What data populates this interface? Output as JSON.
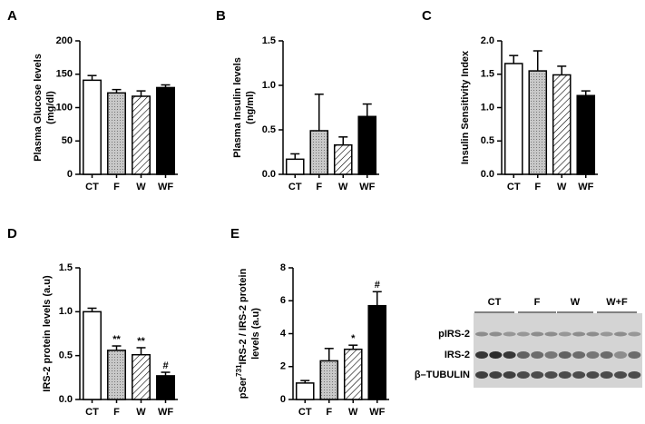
{
  "chart_data": [
    {
      "type": "bar",
      "panel": "A",
      "ylabel_lines": [
        [
          {
            "text": "Plasma Glucose levels"
          }
        ],
        [
          {
            "text": "(mg/dl)"
          }
        ]
      ],
      "categories": [
        "CT",
        "F",
        "W",
        "WF"
      ],
      "values": [
        141,
        122,
        117,
        130
      ],
      "errors": [
        7,
        5,
        8,
        4
      ],
      "annotations": [
        null,
        null,
        null,
        null
      ],
      "colors": [
        "#ffffff",
        "#c8c8c8",
        "#ffffff",
        "#000000"
      ],
      "patterns": [
        "none",
        "dots",
        "hatch",
        "none"
      ],
      "ylim": [
        0,
        200
      ],
      "yticks": [
        0,
        50,
        100,
        150,
        200
      ]
    },
    {
      "type": "bar",
      "panel": "B",
      "ylabel_lines": [
        [
          {
            "text": "Plasma Insulin levels"
          }
        ],
        [
          {
            "text": "(ng/ml)"
          }
        ]
      ],
      "categories": [
        "CT",
        "F",
        "W",
        "WF"
      ],
      "values": [
        0.17,
        0.49,
        0.33,
        0.65
      ],
      "errors": [
        0.06,
        0.41,
        0.09,
        0.14
      ],
      "annotations": [
        null,
        null,
        null,
        null
      ],
      "colors": [
        "#ffffff",
        "#c8c8c8",
        "#ffffff",
        "#000000"
      ],
      "patterns": [
        "none",
        "dots",
        "hatch",
        "none"
      ],
      "ylim": [
        0,
        1.5
      ],
      "yticks": [
        {
          "value": 0,
          "label": "0.0"
        },
        0.5,
        {
          "value": 1,
          "label": "1.0"
        },
        1.5
      ]
    },
    {
      "type": "bar",
      "panel": "C",
      "ylabel_lines": [
        [
          {
            "text": "Insulin Sensitivity Index"
          }
        ]
      ],
      "categories": [
        "CT",
        "F",
        "W",
        "WF"
      ],
      "values": [
        1.66,
        1.55,
        1.49,
        1.18
      ],
      "errors": [
        0.12,
        0.3,
        0.13,
        0.07
      ],
      "annotations": [
        null,
        null,
        null,
        null
      ],
      "colors": [
        "#ffffff",
        "#c8c8c8",
        "#ffffff",
        "#000000"
      ],
      "patterns": [
        "none",
        "dots",
        "hatch",
        "none"
      ],
      "ylim": [
        0,
        2
      ],
      "yticks": [
        {
          "value": 0,
          "label": "0.0"
        },
        0.5,
        {
          "value": 1,
          "label": "1.0"
        },
        1.5,
        {
          "value": 2,
          "label": "2.0"
        }
      ]
    },
    {
      "type": "bar",
      "panel": "D",
      "ylabel_lines": [
        [
          {
            "text": "IRS-2 protein levels (a.u)"
          }
        ]
      ],
      "categories": [
        "CT",
        "F",
        "W",
        "WF"
      ],
      "values": [
        1.0,
        0.56,
        0.51,
        0.27
      ],
      "errors": [
        0.04,
        0.05,
        0.08,
        0.04
      ],
      "annotations": [
        null,
        "**",
        "**",
        "#"
      ],
      "colors": [
        "#ffffff",
        "#c8c8c8",
        "#ffffff",
        "#000000"
      ],
      "patterns": [
        "none",
        "dots",
        "hatch",
        "none"
      ],
      "ylim": [
        0,
        1.5
      ],
      "yticks": [
        {
          "value": 0,
          "label": "0.0"
        },
        0.5,
        {
          "value": 1,
          "label": "1.0"
        },
        1.5
      ]
    },
    {
      "type": "bar",
      "panel": "E",
      "ylabel_lines": [
        [
          {
            "text": "pSer"
          },
          {
            "text": "731",
            "sup": true
          },
          {
            "text": "IRS-2 / IRS-2 protein"
          }
        ],
        [
          {
            "text": "levels (a.u)"
          }
        ]
      ],
      "categories": [
        "CT",
        "F",
        "W",
        "WF"
      ],
      "values": [
        1.0,
        2.35,
        3.05,
        5.7
      ],
      "errors": [
        0.15,
        0.75,
        0.25,
        0.85
      ],
      "annotations": [
        null,
        null,
        "*",
        "#"
      ],
      "colors": [
        "#ffffff",
        "#c8c8c8",
        "#ffffff",
        "#000000"
      ],
      "patterns": [
        "none",
        "dots",
        "hatch",
        "none"
      ],
      "ylim": [
        0,
        8
      ],
      "yticks": [
        0,
        2,
        4,
        6,
        8
      ]
    }
  ],
  "blot": {
    "groups": [
      "CT",
      "F",
      "W",
      "W+F"
    ],
    "rows": [
      "pIRS-2",
      "IRS-2",
      "β–TUBULIN"
    ]
  }
}
